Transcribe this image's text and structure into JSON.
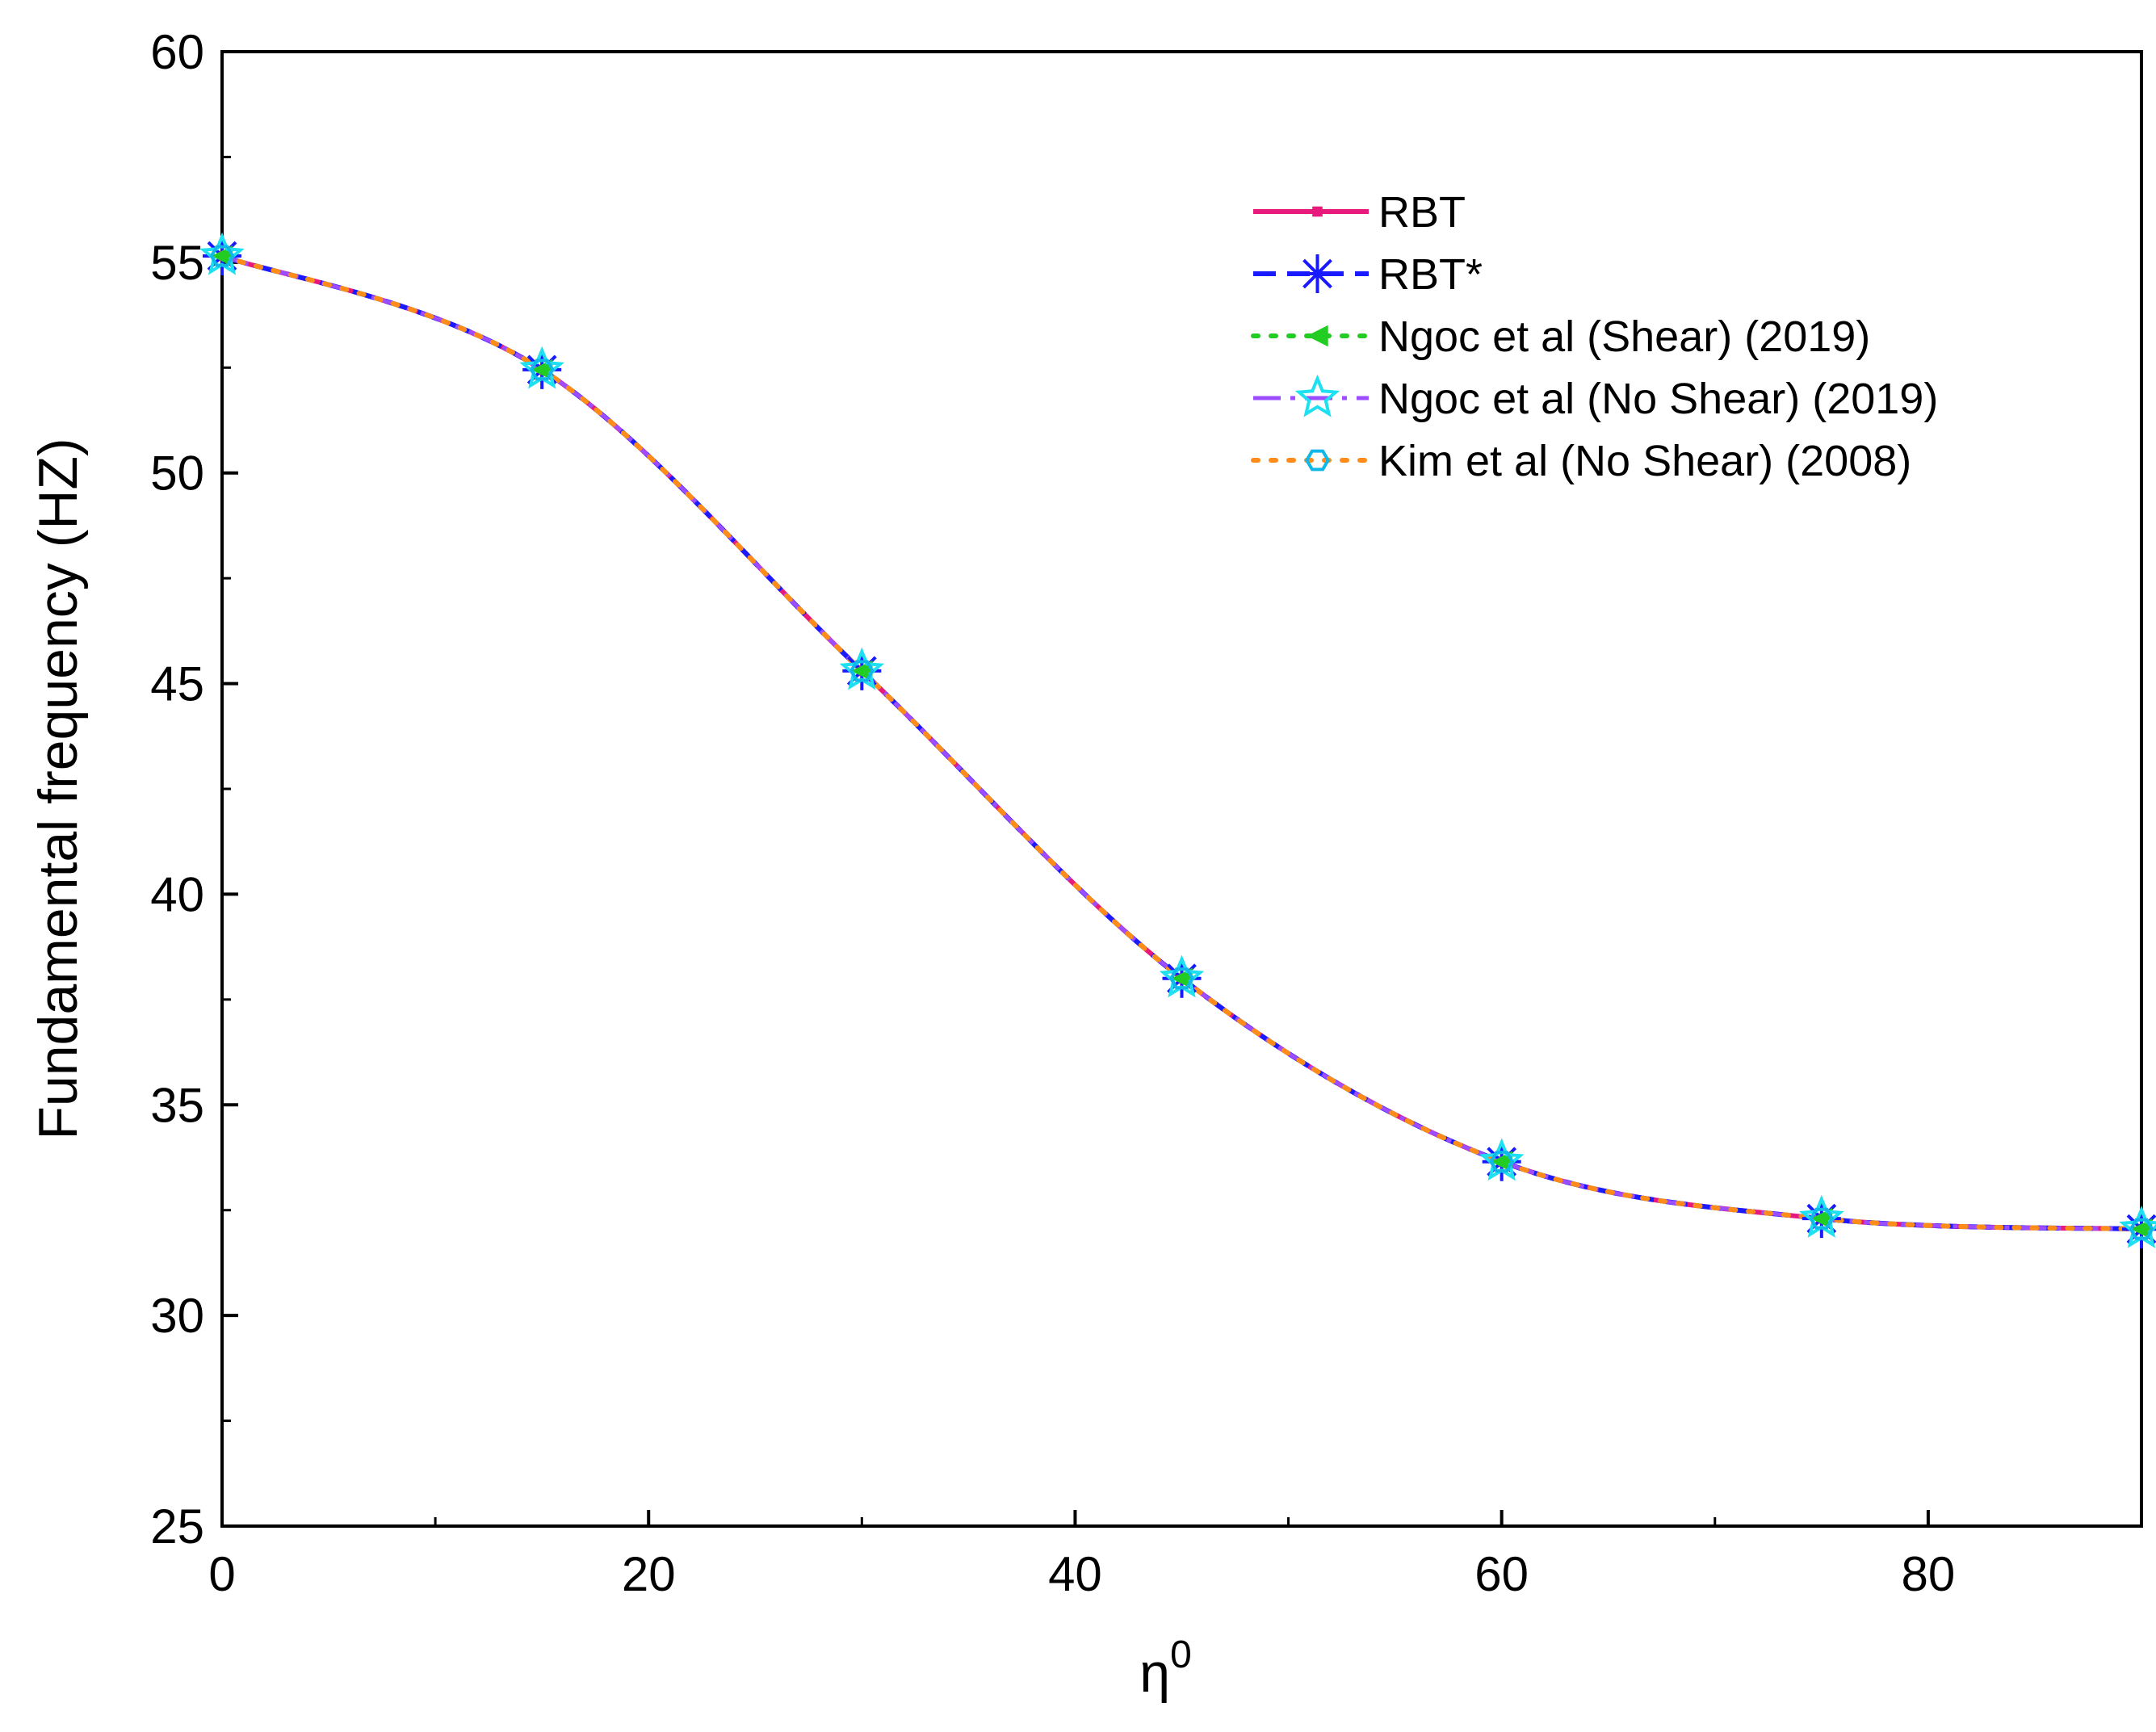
{
  "chart_data": {
    "type": "line",
    "xlabel": "η",
    "xlabel_superscript": "0",
    "ylabel": "Fundamental frequency (HZ)",
    "xlim": [
      0,
      90
    ],
    "ylim": [
      25,
      60
    ],
    "x_ticks": [
      0,
      20,
      40,
      60,
      80
    ],
    "x_ticks_display": [
      "0",
      "20",
      "40",
      "60",
      "80"
    ],
    "y_ticks": [
      25,
      30,
      35,
      40,
      45,
      50,
      55,
      60
    ],
    "y_ticks_display": [
      "25",
      "30",
      "35",
      "40",
      "45",
      "50",
      "55",
      "60"
    ],
    "grid": false,
    "legend_position": "top-right",
    "x": [
      0,
      15,
      30,
      45,
      60,
      75,
      90
    ],
    "series": [
      {
        "name": "RBT",
        "values": [
          55.15,
          52.45,
          45.3,
          38.0,
          33.65,
          32.3,
          32.05
        ],
        "color": "#e8197d",
        "dash": "solid",
        "marker": "square"
      },
      {
        "name": "RBT*",
        "values": [
          55.15,
          52.45,
          45.3,
          38.0,
          33.65,
          32.3,
          32.05
        ],
        "color": "#1a1aff",
        "dash": "dash",
        "marker": "asterisk"
      },
      {
        "name": "Ngoc et al (Shear) (2019)",
        "values": [
          55.15,
          52.45,
          45.3,
          38.0,
          33.65,
          32.3,
          32.05
        ],
        "color": "#22cc22",
        "dash": "dot",
        "marker": "triangle-left"
      },
      {
        "name": "Ngoc et al (No Shear) (2019)",
        "values": [
          55.15,
          52.45,
          45.3,
          38.0,
          33.65,
          32.3,
          32.05
        ],
        "color": "#9b4dff",
        "dash": "dashdot",
        "marker": "star",
        "marker_color": "#1ee0f0"
      },
      {
        "name": "Kim et al (No Shear) (2008)",
        "values": [
          55.15,
          52.45,
          45.3,
          38.0,
          33.65,
          32.3,
          32.05
        ],
        "color": "#ff8c1a",
        "dash": "dot",
        "marker": "hexagon",
        "marker_color": "#10b8e8"
      }
    ]
  }
}
